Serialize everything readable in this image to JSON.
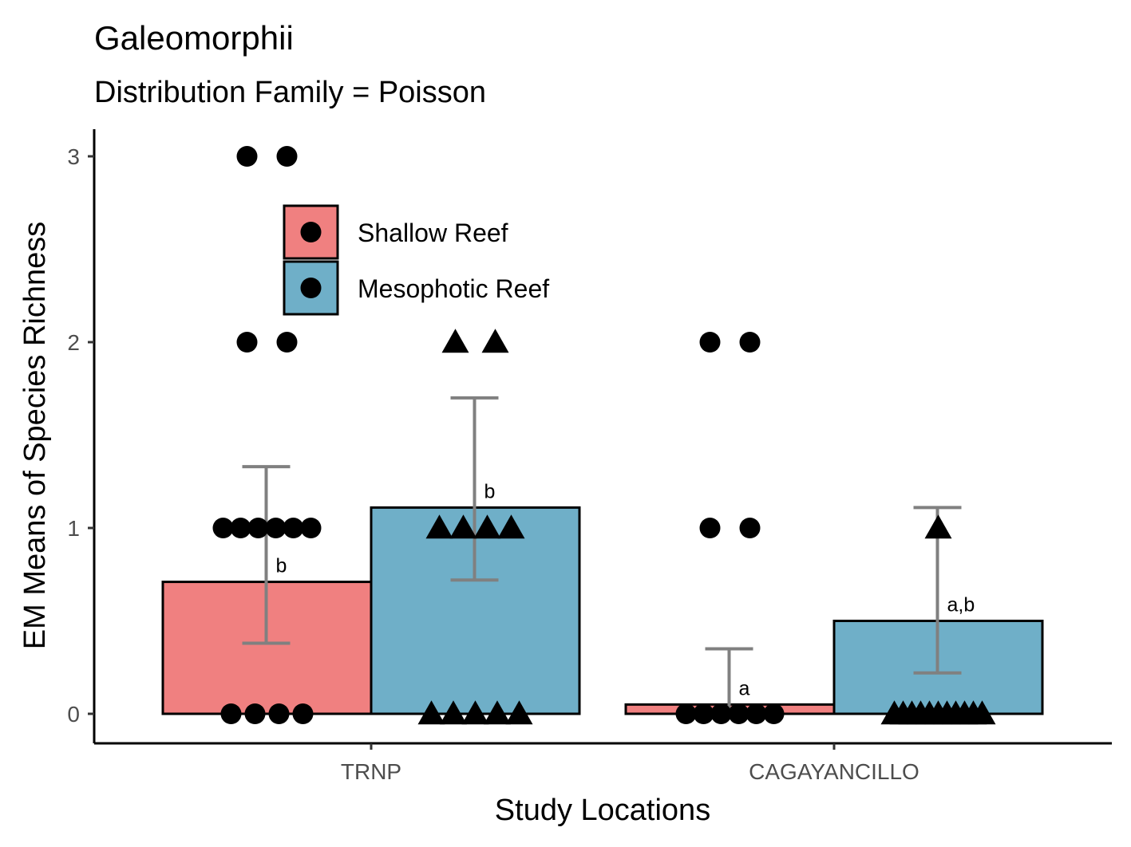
{
  "chart_data": {
    "type": "bar",
    "title": "Galeomorphii",
    "subtitle": "Distribution Family = Poisson",
    "xlabel": "Study Locations",
    "ylabel": "EM Means of Species Richness",
    "categories": [
      "TRNP",
      "CAGAYANCILLO"
    ],
    "ylim": [
      -0.15,
      3.15
    ],
    "yticks": [
      0,
      1,
      2,
      3
    ],
    "grid": false,
    "legend_position": "top-left",
    "series": [
      {
        "name": "Shallow Reef",
        "color": "#F08080",
        "marker": "circle",
        "values": [
          0.71,
          0.05
        ],
        "ci_lower": [
          0.38,
          0.01
        ],
        "ci_upper": [
          1.33,
          0.35
        ],
        "letters": [
          "b",
          "a"
        ],
        "points": [
          [
            0,
            0,
            0,
            0,
            1,
            1,
            1,
            1,
            1,
            1,
            2,
            2,
            3,
            3
          ],
          [
            0,
            0,
            0,
            0,
            0,
            0,
            1,
            1,
            2,
            2
          ]
        ]
      },
      {
        "name": "Mesophotic Reef",
        "color": "#6FAFC8",
        "marker": "triangle",
        "values": [
          1.11,
          0.5
        ],
        "ci_lower": [
          0.72,
          0.22
        ],
        "ci_upper": [
          1.7,
          1.11
        ],
        "letters": [
          "b",
          "a,b"
        ],
        "points": [
          [
            0,
            0,
            0,
            0,
            0,
            1,
            1,
            1,
            1,
            2,
            2
          ],
          [
            0,
            0,
            0,
            0,
            0,
            0,
            0,
            0,
            0,
            0,
            0,
            1
          ]
        ]
      }
    ]
  }
}
